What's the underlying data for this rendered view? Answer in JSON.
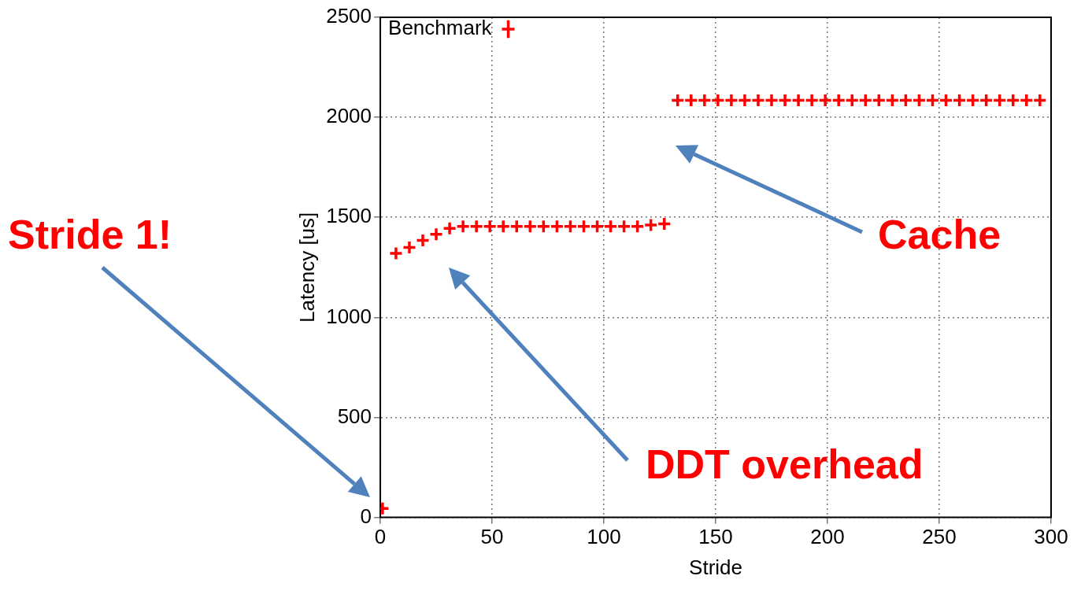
{
  "chart_data": {
    "type": "scatter",
    "xlabel": "Stride",
    "ylabel": "Latency [us]",
    "x": [
      1,
      7,
      13,
      19,
      25,
      31,
      37,
      43,
      49,
      55,
      61,
      67,
      73,
      79,
      85,
      91,
      97,
      103,
      109,
      115,
      121,
      127,
      133,
      139,
      145,
      151,
      157,
      163,
      169,
      175,
      181,
      187,
      193,
      199,
      205,
      211,
      217,
      223,
      229,
      235,
      241,
      247,
      253,
      259,
      265,
      271,
      277,
      283,
      289,
      295
    ],
    "series": [
      {
        "name": "Benchmark",
        "color": "#ff0000",
        "values": [
          45,
          1320,
          1350,
          1385,
          1415,
          1445,
          1455,
          1455,
          1455,
          1455,
          1455,
          1455,
          1455,
          1455,
          1455,
          1455,
          1455,
          1455,
          1455,
          1455,
          1462,
          1468,
          2085,
          2085,
          2085,
          2085,
          2085,
          2085,
          2085,
          2085,
          2085,
          2085,
          2085,
          2085,
          2085,
          2085,
          2085,
          2085,
          2085,
          2085,
          2085,
          2085,
          2085,
          2085,
          2085,
          2085,
          2085,
          2085,
          2085,
          2085
        ]
      }
    ],
    "xlim": [
      0,
      300
    ],
    "xticks": [
      0,
      50,
      100,
      150,
      200,
      250,
      300
    ],
    "ylim": [
      0,
      2500
    ],
    "yticks": [
      0,
      500,
      1000,
      1500,
      2000,
      2500
    ],
    "grid": true,
    "legend": "top left",
    "marker": "cross",
    "annotations": [
      "Stride 1!",
      "DDT overhead",
      "Cache"
    ]
  }
}
